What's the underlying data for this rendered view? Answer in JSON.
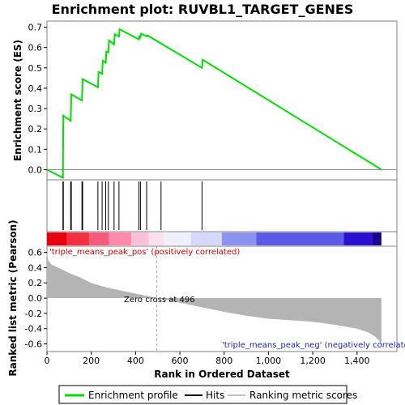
{
  "chart_data": {
    "type": "line",
    "title": "Enrichment plot: RUVBL1_TARGET_GENES",
    "top_panel": {
      "ylabel": "Enrichment score (ES)",
      "ylim": [
        -0.05,
        0.73
      ],
      "yticks": [
        0.0,
        0.1,
        0.2,
        0.3,
        0.4,
        0.5,
        0.6,
        0.7
      ],
      "ytick_labels": [
        "0.0",
        "0.1",
        "0.2",
        "0.3",
        "0.4",
        "0.5",
        "0.6",
        "0.7"
      ],
      "series": [
        {
          "name": "Enrichment profile",
          "color": "#00e000",
          "x": [
            0,
            72,
            74,
            107,
            110,
            158,
            161,
            230,
            233,
            249,
            252,
            265,
            268,
            277,
            280,
            303,
            306,
            325,
            328,
            415,
            418,
            422,
            425,
            450,
            453,
            515,
            518,
            700,
            703,
            1510
          ],
          "y": [
            0.0,
            -0.04,
            0.265,
            0.24,
            0.37,
            0.34,
            0.445,
            0.405,
            0.48,
            0.47,
            0.535,
            0.525,
            0.58,
            0.575,
            0.635,
            0.615,
            0.665,
            0.655,
            0.69,
            0.64,
            0.655,
            0.65,
            0.668,
            0.655,
            0.66,
            0.62,
            0.618,
            0.5,
            0.54,
            0.0
          ]
        }
      ]
    },
    "hits": {
      "name": "Hits",
      "x": [
        72,
        74,
        107,
        110,
        158,
        161,
        230,
        249,
        265,
        277,
        303,
        325,
        415,
        422,
        450,
        515,
        700
      ]
    },
    "heatmap_bar": {
      "segments": [
        {
          "x0": 0,
          "x1": 90,
          "color": "#e8000c"
        },
        {
          "x0": 90,
          "x1": 190,
          "color": "#f43040"
        },
        {
          "x0": 190,
          "x1": 280,
          "color": "#f8587a"
        },
        {
          "x0": 280,
          "x1": 380,
          "color": "#fc8aa8"
        },
        {
          "x0": 380,
          "x1": 460,
          "color": "#fcc0d8"
        },
        {
          "x0": 460,
          "x1": 530,
          "color": "#fce0f0"
        },
        {
          "x0": 530,
          "x1": 650,
          "color": "#eef0fc"
        },
        {
          "x0": 650,
          "x1": 790,
          "color": "#d4d8fa"
        },
        {
          "x0": 790,
          "x1": 945,
          "color": "#8c92f0"
        },
        {
          "x0": 945,
          "x1": 1340,
          "color": "#5a5ae6"
        },
        {
          "x0": 1340,
          "x1": 1470,
          "color": "#2a10d0"
        },
        {
          "x0": 1470,
          "x1": 1510,
          "color": "#1a0090"
        }
      ]
    },
    "bottom_panel": {
      "ylabel": "Ranked list metric (Pearson)",
      "xlabel": "Rank in Ordered Dataset",
      "ylim": [
        -0.7,
        0.68
      ],
      "xlim": [
        0,
        1580
      ],
      "yticks": [
        -0.6,
        -0.4,
        -0.2,
        0.0,
        0.2,
        0.4,
        0.6
      ],
      "ytick_labels": [
        "-0.6",
        "-0.4",
        "-0.2",
        "0.0",
        "0.2",
        "0.4",
        "0.6"
      ],
      "xticks": [
        0,
        200,
        400,
        600,
        800,
        1000,
        1200,
        1400
      ],
      "xtick_labels": [
        "0",
        "200",
        "400",
        "600",
        "800",
        "1,000",
        "1,200",
        "1,400"
      ],
      "series": [
        {
          "name": "Ranking metric scores",
          "color": "#b4b4b4",
          "x": [
            0,
            5,
            20,
            50,
            100,
            150,
            200,
            250,
            300,
            350,
            400,
            450,
            496,
            550,
            600,
            700,
            800,
            900,
            1000,
            1100,
            1200,
            1300,
            1400,
            1450,
            1480,
            1500,
            1510
          ],
          "y": [
            0.6,
            0.5,
            0.44,
            0.4,
            0.33,
            0.27,
            0.2,
            0.155,
            0.12,
            0.09,
            0.06,
            0.03,
            0.0,
            -0.03,
            -0.06,
            -0.12,
            -0.18,
            -0.23,
            -0.27,
            -0.29,
            -0.31,
            -0.35,
            -0.4,
            -0.45,
            -0.5,
            -0.56,
            -0.63
          ]
        }
      ],
      "zero_cross": 496,
      "annotations": {
        "pos_label": "'triple_means_peak_pos' (positively correlated)",
        "zero_cross_label": "Zero cross at 496",
        "neg_label": "'triple_means_peak_neg' (negatively correlated)"
      }
    },
    "legend": {
      "position": "bottom",
      "entries": [
        {
          "label": "Enrichment profile",
          "color": "#00e000"
        },
        {
          "label": "Hits",
          "color": "#000000"
        },
        {
          "label": "Ranking metric scores",
          "color": "#b4b4b4"
        }
      ]
    }
  }
}
